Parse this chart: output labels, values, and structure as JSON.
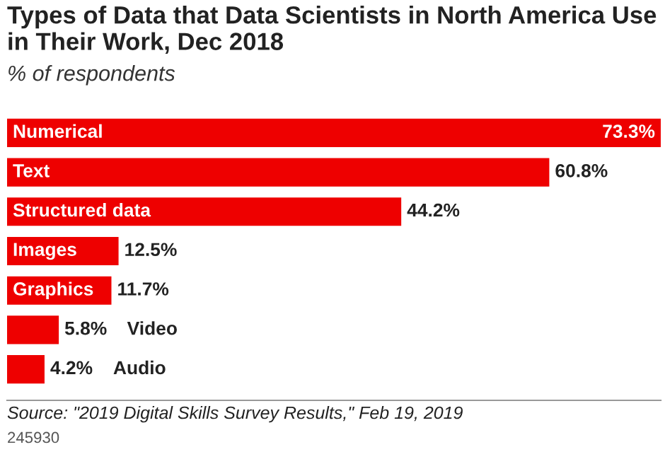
{
  "chart_data": {
    "type": "bar",
    "orientation": "horizontal",
    "title": "Types of Data that Data Scientists in North America Use in Their Work, Dec 2018",
    "subtitle": "% of respondents",
    "categories": [
      "Numerical",
      "Text",
      "Structured data",
      "Images",
      "Graphics",
      "Video",
      "Audio"
    ],
    "values": [
      73.3,
      60.8,
      44.2,
      12.5,
      11.7,
      5.8,
      4.2
    ],
    "color": "#ee0000",
    "data_labels": true,
    "value_labels": [
      "73.3%",
      "60.8%",
      "44.2%",
      "12.5%",
      "11.7%",
      "5.8%",
      "4.2%"
    ],
    "annotations": [
      "Source: \"2019 Digital Skills Survey Results,\" Feb 19, 2019",
      "245930"
    ]
  }
}
